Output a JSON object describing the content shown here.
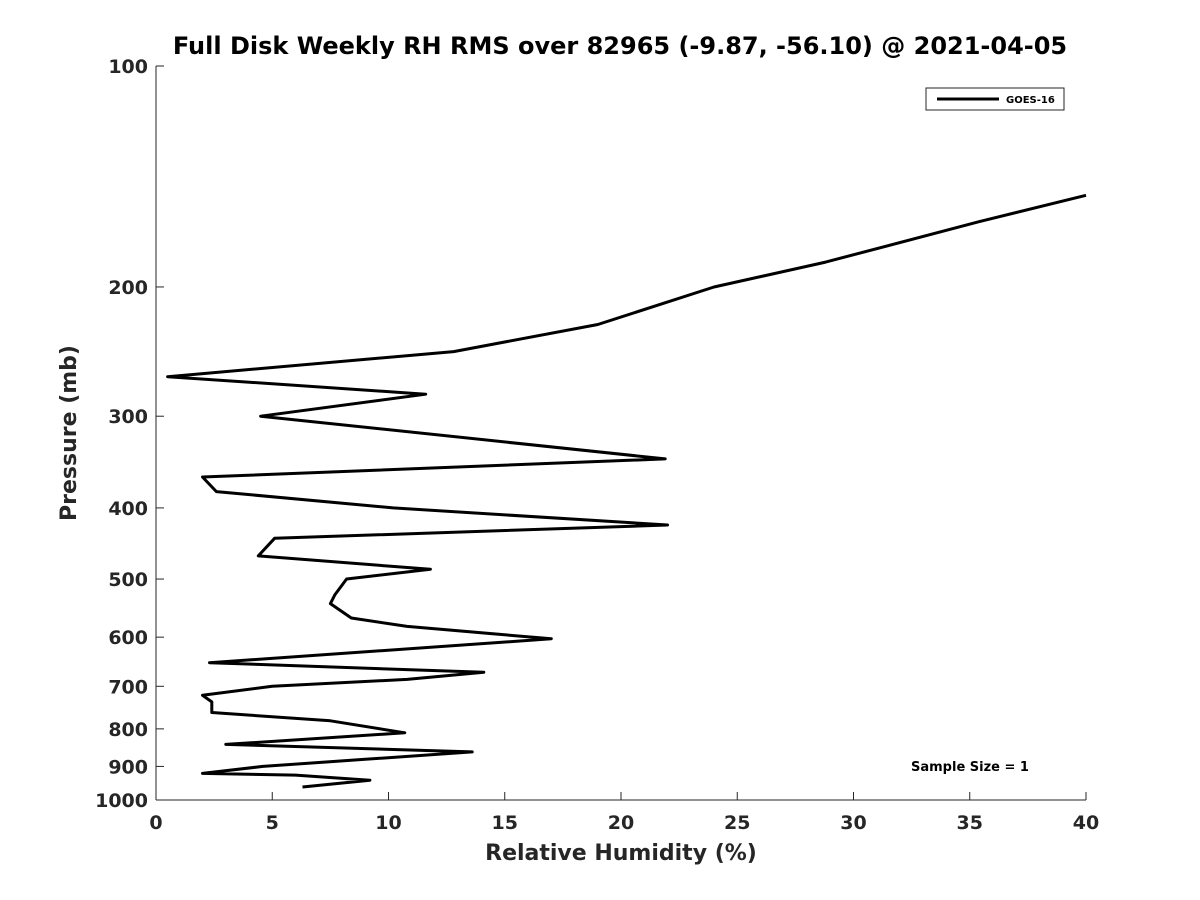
{
  "chart_data": {
    "type": "line",
    "title": "Full Disk Weekly RH RMS over 82965 (-9.87, -56.10) @ 2021-04-05",
    "xlabel": "Relative Humidity (%)",
    "ylabel": "Pressure (mb)",
    "xlim": [
      0,
      40
    ],
    "ylim": [
      100,
      1000
    ],
    "yscale": "log",
    "yreversed": true,
    "grid": false,
    "legend_placement": "top-right",
    "x_ticks": [
      "0",
      "5",
      "10",
      "15",
      "20",
      "25",
      "30",
      "35",
      "40"
    ],
    "y_ticks": [
      "100",
      "200",
      "300",
      "400",
      "500",
      "600",
      "700",
      "800",
      "900",
      "1000"
    ],
    "annotation": "Sample Size = 1",
    "series_color": "#000000",
    "series": [
      {
        "name": "GOES-16",
        "points": [
          {
            "rh": 40.0,
            "p": 150
          },
          {
            "rh": 35.4,
            "p": 163
          },
          {
            "rh": 28.8,
            "p": 185
          },
          {
            "rh": 24.0,
            "p": 200
          },
          {
            "rh": 19.0,
            "p": 225
          },
          {
            "rh": 12.8,
            "p": 245
          },
          {
            "rh": 0.5,
            "p": 265
          },
          {
            "rh": 11.6,
            "p": 280
          },
          {
            "rh": 4.5,
            "p": 300
          },
          {
            "rh": 21.9,
            "p": 343
          },
          {
            "rh": 2.0,
            "p": 363
          },
          {
            "rh": 2.6,
            "p": 380
          },
          {
            "rh": 10.2,
            "p": 400
          },
          {
            "rh": 22.0,
            "p": 422
          },
          {
            "rh": 5.1,
            "p": 440
          },
          {
            "rh": 4.4,
            "p": 465
          },
          {
            "rh": 11.8,
            "p": 485
          },
          {
            "rh": 8.2,
            "p": 500
          },
          {
            "rh": 7.7,
            "p": 525
          },
          {
            "rh": 7.5,
            "p": 540
          },
          {
            "rh": 8.4,
            "p": 565
          },
          {
            "rh": 10.8,
            "p": 580
          },
          {
            "rh": 17.0,
            "p": 603
          },
          {
            "rh": 2.3,
            "p": 650
          },
          {
            "rh": 14.1,
            "p": 670
          },
          {
            "rh": 10.8,
            "p": 685
          },
          {
            "rh": 5.0,
            "p": 700
          },
          {
            "rh": 2.0,
            "p": 720
          },
          {
            "rh": 2.4,
            "p": 735
          },
          {
            "rh": 2.4,
            "p": 760
          },
          {
            "rh": 7.5,
            "p": 780
          },
          {
            "rh": 10.7,
            "p": 810
          },
          {
            "rh": 3.0,
            "p": 840
          },
          {
            "rh": 13.6,
            "p": 860
          },
          {
            "rh": 9.0,
            "p": 880
          },
          {
            "rh": 4.6,
            "p": 900
          },
          {
            "rh": 2.0,
            "p": 920
          },
          {
            "rh": 6.0,
            "p": 925
          },
          {
            "rh": 9.2,
            "p": 940
          },
          {
            "rh": 6.3,
            "p": 960
          }
        ]
      }
    ]
  }
}
